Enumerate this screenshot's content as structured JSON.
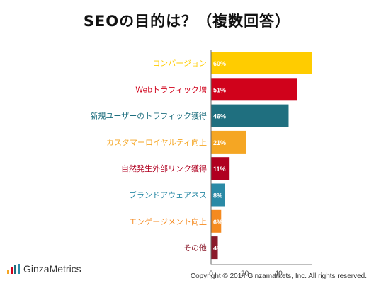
{
  "title": "SEOの目的は？（複数回答）",
  "logo": {
    "text": "GinzaMetrics"
  },
  "copyright": "Copyright © 2014 Ginzamarkets, Inc. All rights reserved.",
  "chart_data": {
    "type": "bar",
    "orientation": "horizontal",
    "title": "SEOの目的は？（複数回答）",
    "categories": [
      "コンバージョン",
      "Webトラフィック増",
      "新規ユーザーのトラフィック獲得",
      "カスタマーロイヤルティ向上",
      "自然発生外部リンク獲得",
      "ブランドアウェアネス",
      "エンゲージメント向上",
      "その他"
    ],
    "values": [
      60,
      51,
      46,
      21,
      11,
      8,
      6,
      4
    ],
    "data_labels": [
      "60%",
      "51%",
      "46%",
      "21%",
      "11%",
      "8%",
      "6%",
      "4%"
    ],
    "colors": [
      "#ffcc00",
      "#d0021b",
      "#1f6f7f",
      "#f5a623",
      "#b00020",
      "#2a8aa6",
      "#f58a1f",
      "#8b1a2b"
    ],
    "x_ticks": [
      "0",
      "20",
      "40"
    ],
    "xlim": [
      0,
      60
    ],
    "grid": false
  }
}
